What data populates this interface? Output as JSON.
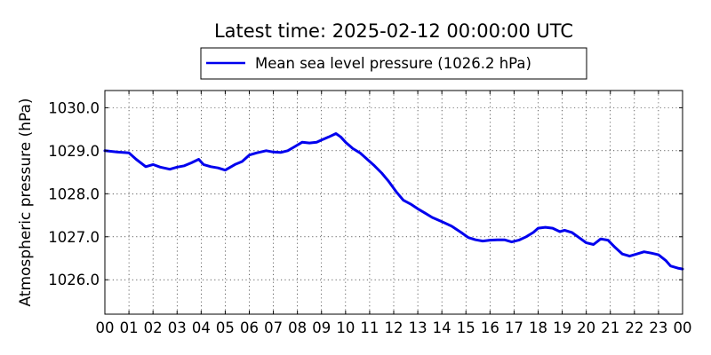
{
  "chart_data": {
    "type": "line",
    "title": "Latest time: 2025-02-12 00:00:00 UTC",
    "xlabel": "",
    "ylabel": "Atmospheric pressure (hPa)",
    "xlim": [
      0,
      24
    ],
    "ylim": [
      1025.2,
      1030.4
    ],
    "xticks": [
      0,
      1,
      2,
      3,
      4,
      5,
      6,
      7,
      8,
      9,
      10,
      11,
      12,
      13,
      14,
      15,
      16,
      17,
      18,
      19,
      20,
      21,
      22,
      23,
      24
    ],
    "xtick_labels": [
      "00",
      "01",
      "02",
      "03",
      "04",
      "05",
      "06",
      "07",
      "08",
      "09",
      "10",
      "11",
      "12",
      "13",
      "14",
      "15",
      "16",
      "17",
      "18",
      "19",
      "20",
      "21",
      "22",
      "23",
      "00"
    ],
    "yticks": [
      1026.0,
      1027.0,
      1028.0,
      1029.0,
      1030.0
    ],
    "ytick_labels": [
      "1026.0",
      "1027.0",
      "1028.0",
      "1029.0",
      "1030.0"
    ],
    "grid": true,
    "legend_position": "above-plot",
    "series": [
      {
        "name": "Mean sea level pressure (1026.2 hPa)",
        "color": "#0000ee",
        "x": [
          0,
          0.5,
          1.0,
          1.3,
          1.7,
          2.0,
          2.3,
          2.7,
          3.0,
          3.3,
          3.6,
          3.9,
          4.1,
          4.4,
          4.7,
          5.0,
          5.4,
          5.7,
          6.0,
          6.3,
          6.7,
          7.0,
          7.3,
          7.6,
          7.9,
          8.2,
          8.5,
          8.8,
          9.0,
          9.3,
          9.6,
          9.8,
          10.0,
          10.3,
          10.6,
          10.9,
          11.2,
          11.5,
          11.8,
          12.1,
          12.4,
          12.7,
          13.0,
          13.3,
          13.6,
          14.0,
          14.4,
          14.8,
          15.1,
          15.4,
          15.7,
          16.0,
          16.3,
          16.6,
          16.9,
          17.2,
          17.5,
          17.8,
          18.0,
          18.3,
          18.6,
          18.9,
          19.1,
          19.4,
          19.7,
          20.0,
          20.3,
          20.6,
          20.9,
          21.2,
          21.5,
          21.8,
          22.1,
          22.4,
          22.7,
          23.0,
          23.3,
          23.5,
          23.8,
          24.0
        ],
        "values": [
          1029.0,
          1028.97,
          1028.95,
          1028.8,
          1028.63,
          1028.68,
          1028.62,
          1028.57,
          1028.62,
          1028.65,
          1028.72,
          1028.8,
          1028.68,
          1028.63,
          1028.6,
          1028.55,
          1028.68,
          1028.75,
          1028.9,
          1028.95,
          1029.0,
          1028.97,
          1028.96,
          1029.0,
          1029.1,
          1029.2,
          1029.18,
          1029.2,
          1029.25,
          1029.32,
          1029.4,
          1029.32,
          1029.2,
          1029.05,
          1028.95,
          1028.8,
          1028.65,
          1028.48,
          1028.28,
          1028.05,
          1027.85,
          1027.76,
          1027.65,
          1027.55,
          1027.45,
          1027.35,
          1027.25,
          1027.1,
          1026.98,
          1026.93,
          1026.9,
          1026.92,
          1026.93,
          1026.93,
          1026.88,
          1026.92,
          1027.0,
          1027.1,
          1027.2,
          1027.22,
          1027.2,
          1027.12,
          1027.15,
          1027.1,
          1026.98,
          1026.86,
          1026.82,
          1026.95,
          1026.92,
          1026.75,
          1026.6,
          1026.55,
          1026.6,
          1026.65,
          1026.62,
          1026.58,
          1026.45,
          1026.32,
          1026.27,
          1026.25
        ]
      }
    ]
  }
}
